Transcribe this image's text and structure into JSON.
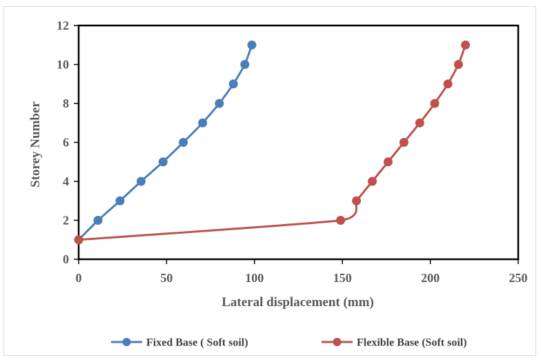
{
  "chart_data": {
    "type": "line",
    "xlabel": "Lateral displacement (mm)",
    "ylabel": "Storey Number",
    "xlim": [
      0,
      250
    ],
    "ylim": [
      0,
      12
    ],
    "xticks": [
      0,
      50,
      100,
      150,
      200,
      250
    ],
    "yticks": [
      0,
      2,
      4,
      6,
      8,
      10,
      12
    ],
    "grid": false,
    "legend_position": "bottom",
    "series": [
      {
        "name": "Fixed Base ( Soft soil)",
        "color": "#4a7ebb",
        "marker": "circle",
        "smooth": true,
        "points": [
          [
            0,
            1
          ],
          [
            11,
            2
          ],
          [
            23.5,
            3
          ],
          [
            35.5,
            4
          ],
          [
            48,
            5
          ],
          [
            59.5,
            6
          ],
          [
            70.5,
            7
          ],
          [
            80,
            8
          ],
          [
            88,
            9
          ],
          [
            94.5,
            10
          ],
          [
            98.5,
            11
          ]
        ]
      },
      {
        "name": "Flexible Base (Soft soil)",
        "color": "#c0504d",
        "marker": "circle",
        "smooth": true,
        "points": [
          [
            0,
            1
          ],
          [
            149,
            2
          ],
          [
            158,
            3
          ],
          [
            167,
            4
          ],
          [
            176,
            5
          ],
          [
            185,
            6
          ],
          [
            194,
            7
          ],
          [
            202.5,
            8
          ],
          [
            210,
            9
          ],
          [
            216,
            10
          ],
          [
            220,
            11
          ]
        ]
      }
    ]
  }
}
